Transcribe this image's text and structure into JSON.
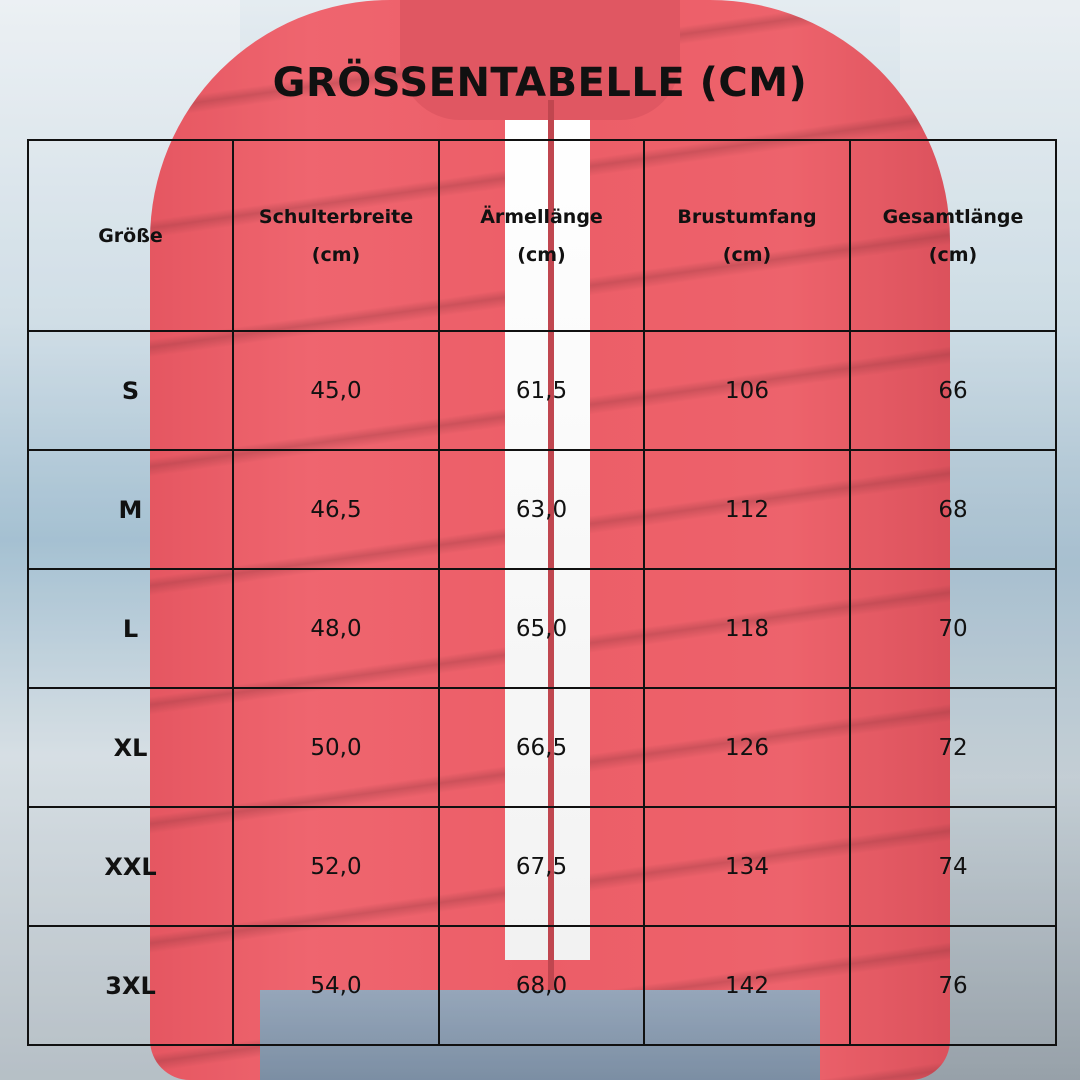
{
  "title": "GRÖSSENTABELLE (CM)",
  "headers": {
    "size": "Größe",
    "shoulder": [
      "Schulterbreite",
      "(cm)"
    ],
    "sleeve": [
      "Ärmellänge",
      "(cm)"
    ],
    "chest": [
      "Brustumfang",
      "(cm)"
    ],
    "length": [
      "Gesamtlänge",
      "(cm)"
    ]
  },
  "rows": [
    {
      "size": "S",
      "shoulder": "45,0",
      "sleeve": "61,5",
      "chest": "106",
      "length": "66"
    },
    {
      "size": "M",
      "shoulder": "46,5",
      "sleeve": "63,0",
      "chest": "112",
      "length": "68"
    },
    {
      "size": "L",
      "shoulder": "48,0",
      "sleeve": "65,0",
      "chest": "118",
      "length": "70"
    },
    {
      "size": "XL",
      "shoulder": "50,0",
      "sleeve": "66,5",
      "chest": "126",
      "length": "72"
    },
    {
      "size": "XXL",
      "shoulder": "52,0",
      "sleeve": "67,5",
      "chest": "134",
      "length": "74"
    },
    {
      "size": "3XL",
      "shoulder": "54,0",
      "sleeve": "68,0",
      "chest": "142",
      "length": "76"
    }
  ],
  "colors": {
    "jacket": "#e83a46",
    "text": "#111111",
    "border": "#111111"
  }
}
